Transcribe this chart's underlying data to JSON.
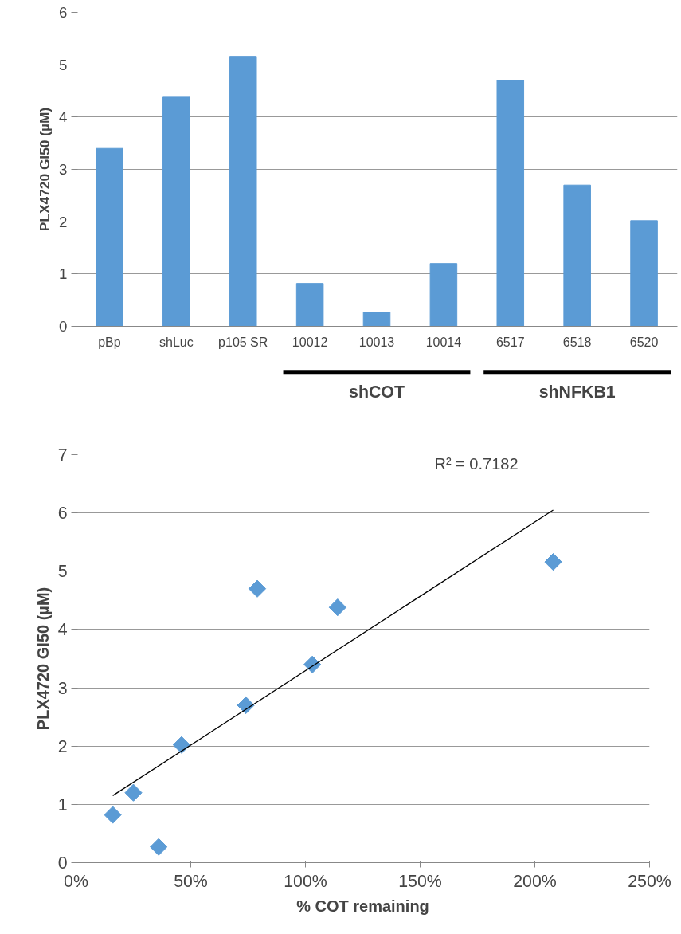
{
  "chart_data": [
    {
      "type": "bar",
      "ylabel": "PLX4720 GI50 (µM)",
      "categories": [
        "pBp",
        "shLuc",
        "p105 SR",
        "10012",
        "10013",
        "10014",
        "6517",
        "6518",
        "6520"
      ],
      "values": [
        3.4,
        4.38,
        5.16,
        0.82,
        0.27,
        1.2,
        4.7,
        2.7,
        2.02
      ],
      "color": "#5b9bd5",
      "ylim": [
        0,
        6
      ],
      "yticks": [
        0,
        1,
        2,
        3,
        4,
        5,
        6
      ],
      "grid": "y",
      "annotations": [
        "shCOT",
        "shNFKB1"
      ]
    },
    {
      "type": "scatter",
      "xlabel": "% COT remaining",
      "ylabel": "PLX4720 GI50 (µM)",
      "series": [
        {
          "type": "scatter",
          "color": "#5b9bd5",
          "marker": "diamond",
          "x": [
            16,
            25,
            36,
            46,
            74,
            79,
            103,
            114,
            208
          ],
          "values": [
            0.82,
            1.2,
            0.27,
            2.02,
            2.7,
            4.7,
            3.4,
            4.38,
            5.16
          ]
        },
        {
          "type": "line",
          "color": "#000000",
          "x": [
            16,
            208
          ],
          "values": [
            1.15,
            6.05
          ]
        }
      ],
      "xlim": [
        0,
        250
      ],
      "xticks": [
        {
          "value": 0,
          "label": "0%"
        },
        {
          "value": 50,
          "label": "50%"
        },
        {
          "value": 100,
          "label": "100%"
        },
        {
          "value": 150,
          "label": "150%"
        },
        {
          "value": 200,
          "label": "200%"
        },
        {
          "value": 250,
          "label": "250%"
        }
      ],
      "ylim": [
        0,
        7
      ],
      "yticks": [
        0,
        1,
        2,
        3,
        4,
        5,
        6,
        7
      ],
      "grid": "y",
      "annotations": [
        "R² = 0.7182"
      ]
    }
  ]
}
